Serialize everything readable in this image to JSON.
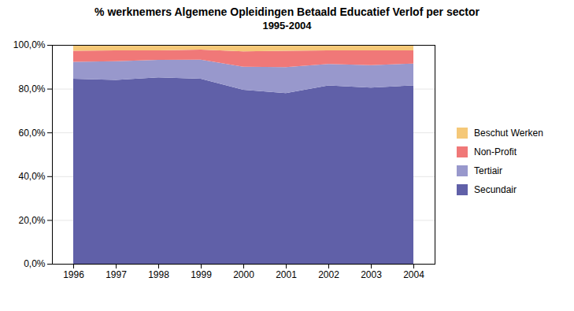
{
  "chart_data": {
    "type": "area",
    "title": "% werknemers Algemene Opleidingen Betaald Educatief Verlof per sector",
    "subtitle": "1995-2004",
    "x": [
      1996,
      1997,
      1998,
      1999,
      2000,
      2001,
      2002,
      2003,
      2004
    ],
    "series": [
      {
        "name": "Secundair",
        "color": "#6060a8",
        "values": [
          84.5,
          84.0,
          85.2,
          84.5,
          79.5,
          78.0,
          81.5,
          80.5,
          81.5
        ]
      },
      {
        "name": "Tertiair",
        "color": "#9898cc",
        "values": [
          7.8,
          8.5,
          8.0,
          8.8,
          10.5,
          11.8,
          9.8,
          10.2,
          10.0
        ]
      },
      {
        "name": "Non-Profit",
        "color": "#f07878",
        "values": [
          5.0,
          5.0,
          4.3,
          4.5,
          7.0,
          7.5,
          6.2,
          6.8,
          6.0
        ]
      },
      {
        "name": "Beschut Werken",
        "color": "#f5c878",
        "values": [
          2.7,
          2.5,
          2.5,
          2.2,
          3.0,
          2.7,
          2.5,
          2.5,
          2.5
        ]
      }
    ],
    "stacked": true,
    "xlim": [
      1995.5,
      2004.5
    ],
    "xticks": [
      1996,
      1997,
      1998,
      1999,
      2000,
      2001,
      2002,
      2003,
      2004
    ],
    "ylim": [
      0,
      100
    ],
    "yticks": [
      {
        "value": 0,
        "label": "0,0%"
      },
      {
        "value": 20,
        "label": "20,0%"
      },
      {
        "value": 40,
        "label": "40,0%"
      },
      {
        "value": 60,
        "label": "60,0%"
      },
      {
        "value": 80,
        "label": "80,0%"
      },
      {
        "value": 100,
        "label": "100,0%"
      }
    ],
    "grid": true,
    "legend": "right"
  }
}
